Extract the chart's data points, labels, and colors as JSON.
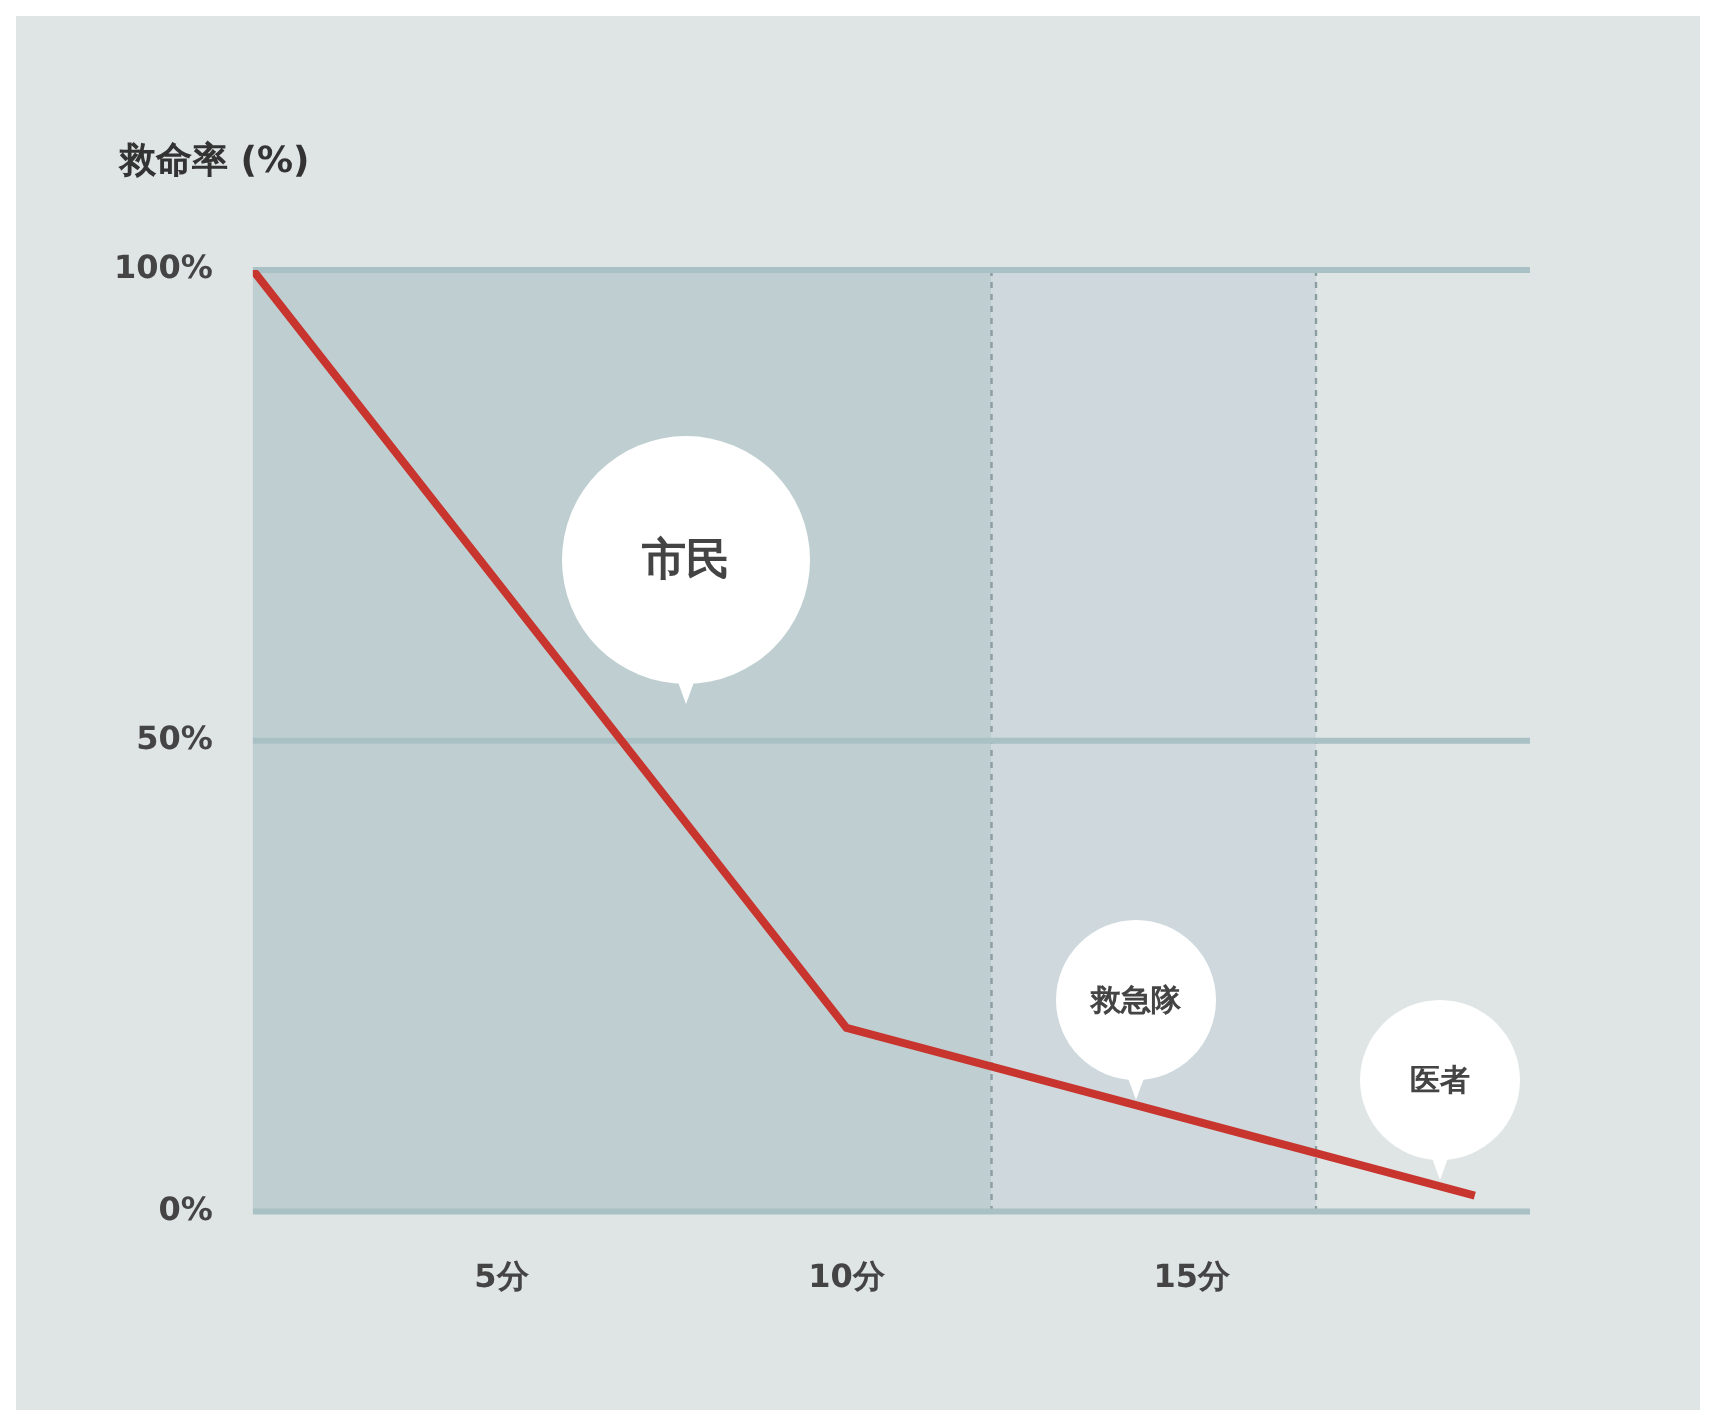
{
  "chart_data": {
    "type": "line",
    "ylabel": "救命率 (%)",
    "x": [
      1.4,
      10,
      19.1
    ],
    "series": [
      {
        "color": "#c8352e",
        "values": [
          100,
          19.5,
          1.7
        ]
      }
    ],
    "xlim": [
      1.4,
      19.9
    ],
    "xticks": [
      {
        "value": 5,
        "label": "5分"
      },
      {
        "value": 10,
        "label": "10分"
      },
      {
        "value": 15,
        "label": "15分"
      }
    ],
    "ylim": [
      0,
      100
    ],
    "yticks": [
      {
        "value": 0,
        "label": "0%"
      },
      {
        "value": 50,
        "label": "50%"
      },
      {
        "value": 100,
        "label": "100%"
      }
    ],
    "grid": "y",
    "legend": false,
    "marker": "none",
    "line_style": "solid",
    "bands": [
      {
        "axis": "x",
        "from": 1.4,
        "to": 12.1,
        "color": "#bfcfd1"
      },
      {
        "axis": "x",
        "from": 12.1,
        "to": 16.8,
        "color": "#cfd9dd"
      }
    ],
    "ref_lines": [
      {
        "axis": "x",
        "value": 12.1,
        "line_style": "dotted",
        "color": "#8a9ea2"
      },
      {
        "axis": "x",
        "value": 16.8,
        "line_style": "dotted",
        "color": "#8a9ea2"
      }
    ],
    "annotations": [
      "市民",
      "救急隊",
      "医者"
    ]
  }
}
